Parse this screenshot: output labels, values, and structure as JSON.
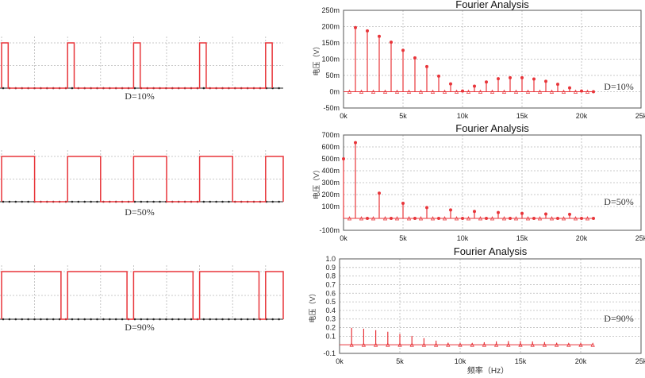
{
  "colors": {
    "signal": "#e8353a",
    "grid": "#b9b9b9",
    "axis": "#222222",
    "frame": "#555555"
  },
  "waveforms": [
    {
      "label": "D=10%",
      "duty": 0.1
    },
    {
      "label": "D=50%",
      "duty": 0.5
    },
    {
      "label": "D=90%",
      "duty": 0.9
    }
  ],
  "chart_data": [
    {
      "type": "scatter",
      "title": "Fourier Analysis",
      "annotation": "D=10%",
      "ylabel": "电压（V）",
      "xlabel": "",
      "xlim": [
        0,
        25000
      ],
      "ylim": [
        -0.05,
        0.25
      ],
      "xticks": [
        "0k",
        "5k",
        "10k",
        "15k",
        "20k",
        "25k"
      ],
      "yticks": [
        "-50m",
        "0m",
        "50m",
        "100m",
        "150m",
        "200m",
        "250m"
      ],
      "grid": true,
      "x": [
        1000,
        2000,
        3000,
        4000,
        5000,
        6000,
        7000,
        8000,
        9000,
        10000,
        11000,
        12000,
        13000,
        14000,
        15000,
        16000,
        17000,
        18000,
        19000,
        20000,
        21000
      ],
      "y": [
        0.197,
        0.187,
        0.17,
        0.152,
        0.127,
        0.104,
        0.077,
        0.048,
        0.024,
        0.002,
        0.017,
        0.03,
        0.04,
        0.043,
        0.043,
        0.039,
        0.032,
        0.023,
        0.012,
        0.002,
        0.0
      ]
    },
    {
      "type": "scatter",
      "title": "Fourier Analysis",
      "annotation": "D=50%",
      "ylabel": "电压（V）",
      "xlabel": "",
      "xlim": [
        0,
        25000
      ],
      "ylim": [
        -0.1,
        0.7
      ],
      "xticks": [
        "0k",
        "5k",
        "10k",
        "15k",
        "20k",
        "25k"
      ],
      "yticks": [
        "-100m",
        "100m",
        "200m",
        "300m",
        "400m",
        "500m",
        "600m",
        "700m"
      ],
      "grid": true,
      "x": [
        0,
        1000,
        2000,
        3000,
        4000,
        5000,
        6000,
        7000,
        8000,
        9000,
        10000,
        11000,
        12000,
        13000,
        14000,
        15000,
        16000,
        17000,
        18000,
        19000,
        20000,
        21000
      ],
      "y": [
        0.5,
        0.636,
        0.0,
        0.212,
        0.0,
        0.127,
        0.0,
        0.091,
        0.0,
        0.071,
        0.0,
        0.058,
        0.0,
        0.049,
        0.0,
        0.042,
        0.0,
        0.037,
        0.0,
        0.034,
        0.0,
        0.0
      ]
    },
    {
      "type": "scatter",
      "title": "Fourier Analysis",
      "annotation": "D=90%",
      "ylabel": "电压（V）",
      "xlabel": "频率（Hz）",
      "xlim": [
        0,
        25000
      ],
      "ylim": [
        -0.1,
        1.0
      ],
      "xticks": [
        "0k",
        "5k",
        "10k",
        "15k",
        "20k",
        "25k"
      ],
      "yticks": [
        "-0.1",
        "0.1",
        "0.2",
        "0.3",
        "0.4",
        "0.5",
        "0.6",
        "0.7",
        "0.8",
        "0.9",
        "1.0"
      ],
      "grid": true,
      "x": [
        1000,
        2000,
        3000,
        4000,
        5000,
        6000,
        7000,
        8000,
        9000,
        10000,
        11000,
        12000,
        13000,
        14000,
        15000,
        16000,
        17000,
        18000,
        19000,
        20000,
        21000
      ],
      "y": [
        0.197,
        0.187,
        0.17,
        0.152,
        0.127,
        0.104,
        0.077,
        0.048,
        0.024,
        0.002,
        0.017,
        0.03,
        0.04,
        0.043,
        0.043,
        0.039,
        0.032,
        0.023,
        0.012,
        0.002,
        0.0
      ]
    }
  ]
}
